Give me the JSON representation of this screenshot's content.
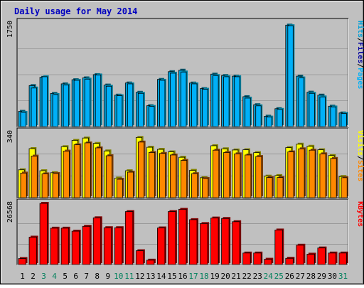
{
  "chart_data": {
    "type": "bar",
    "title": "Daily usage for May 2014",
    "colors": {
      "background": "#C0C0C0",
      "title": "#0000C0",
      "hits": "#00A0D8",
      "hits_side": "#00586F",
      "files": "#0000A0",
      "pages": "#00B0F8",
      "pages_side": "#00809F",
      "visits": "#FFFF00",
      "visits_side": "#808000",
      "sites": "#FF8800",
      "sites_side": "#80400A",
      "kbytes": "#FF0000",
      "kbytes_side": "#800000",
      "weekday_label": "#000000",
      "weekend_label": "#00805C",
      "grid": "#808080"
    },
    "categories": [
      "1",
      "2",
      "3",
      "4",
      "5",
      "6",
      "7",
      "8",
      "9",
      "10",
      "11",
      "12",
      "13",
      "14",
      "15",
      "16",
      "17",
      "18",
      "19",
      "20",
      "21",
      "22",
      "23",
      "24",
      "25",
      "26",
      "27",
      "28",
      "29",
      "30",
      "31"
    ],
    "weekend_days": [
      "3",
      "4",
      "10",
      "11",
      "17",
      "18",
      "24",
      "25",
      "31"
    ],
    "panels": [
      {
        "id": "hits",
        "scale_label": "1750",
        "ymax": 1750,
        "legend": [
          {
            "text": "Hits",
            "color": "#00A0D8"
          },
          {
            "text": "/",
            "color": "#000000"
          },
          {
            "text": "Files",
            "color": "#0000A0"
          },
          {
            "text": "/",
            "color": "#000000"
          },
          {
            "text": "Pages",
            "color": "#00B0F8"
          }
        ],
        "series": [
          {
            "name": "Hits",
            "values": [
              257,
              691,
              830,
              559,
              720,
              790,
              821,
              876,
              700,
              530,
              735,
              578,
              352,
              795,
              925,
              950,
              734,
              640,
              884,
              860,
              850,
              504,
              369,
              175,
              302,
              1710,
              850,
              580,
              530,
              344,
              230
            ]
          },
          {
            "name": "Files",
            "values": [
              100,
              300,
              500,
              260,
              350,
              340,
              380,
              450,
              300,
              180,
              350,
              200,
              80,
              420,
              560,
              600,
              350,
              300,
              560,
              560,
              520,
              200,
              100,
              50,
              130,
              1400,
              450,
              300,
              250,
              120,
              60
            ]
          },
          {
            "name": "Pages",
            "values": [
              240,
              650,
              840,
              540,
              700,
              780,
              800,
              870,
              680,
              520,
              720,
              560,
              340,
              780,
              900,
              920,
              720,
              630,
              860,
              840,
              840,
              480,
              350,
              160,
              290,
              1700,
              820,
              560,
              500,
              330,
              220
            ]
          }
        ]
      },
      {
        "id": "visits",
        "scale_label": "340",
        "ymax": 340,
        "legend": [
          {
            "text": "Visits",
            "color": "#FFFF00"
          },
          {
            "text": "/",
            "color": "#000000"
          },
          {
            "text": "Sites",
            "color": "#FF8800"
          }
        ],
        "series": [
          {
            "name": "Visits",
            "values": [
              145,
              255,
              140,
              130,
              265,
              298,
              310,
              282,
              243,
              102,
              140,
              313,
              262,
              251,
              238,
              210,
              142,
              104,
              270,
              254,
              248,
              249,
              234,
              112,
              115,
              260,
              278,
              267,
              249,
              219,
              110
            ]
          },
          {
            "name": "Sites",
            "values": [
              128,
              216,
              124,
              126,
              242,
              275,
              285,
              259,
              218,
              96,
              133,
              289,
              235,
              230,
              222,
              194,
              125,
              100,
              247,
              235,
              228,
              222,
              214,
              105,
              105,
              238,
              254,
              247,
              228,
              204,
              104
            ]
          }
        ]
      },
      {
        "id": "kbytes",
        "scale_label": "26568",
        "ymax": 26568,
        "legend": [
          {
            "text": "KBytes",
            "color": "#FF0000"
          }
        ],
        "series": [
          {
            "name": "KBytes",
            "values": [
              2600,
              11900,
              26568,
              15800,
              15800,
              14500,
              16600,
              20300,
              16000,
              16000,
              23000,
              6000,
              1900,
              15900,
              23000,
              24000,
              19500,
              17800,
              20200,
              20000,
              18600,
              5000,
              5000,
              2300,
              15000,
              2700,
              8400,
              4500,
              7200,
              5000,
              5000
            ]
          }
        ]
      }
    ]
  }
}
